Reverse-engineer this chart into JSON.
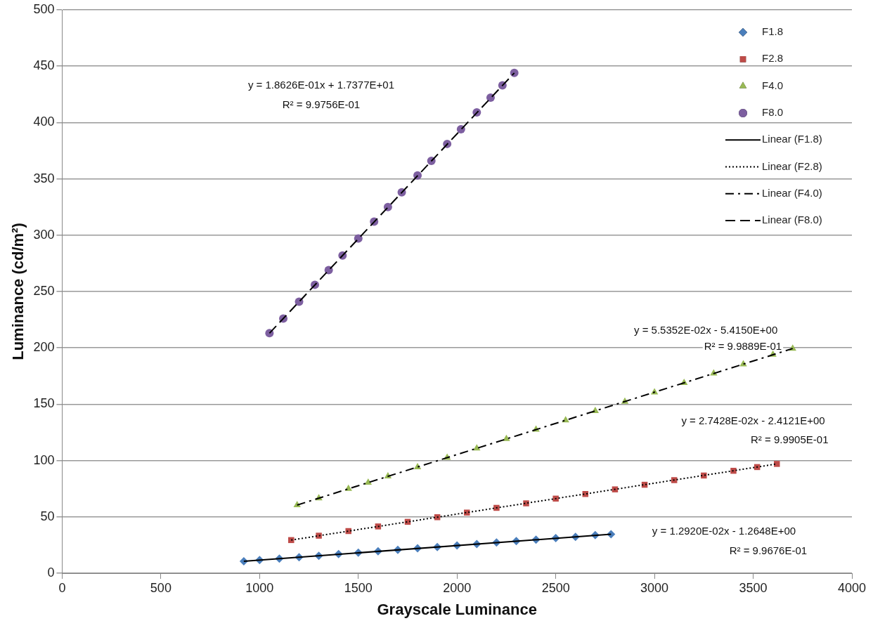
{
  "chart_data": {
    "type": "scatter",
    "xlabel": "Grayscale Luminance",
    "ylabel": "Luminance (cd/m²)",
    "xlim": [
      0,
      4000
    ],
    "xticks": [
      0,
      500,
      1000,
      1500,
      2000,
      2500,
      3000,
      3500,
      4000
    ],
    "ylim": [
      0,
      500
    ],
    "yticks": [
      0,
      50,
      100,
      150,
      200,
      250,
      300,
      350,
      400,
      450,
      500
    ],
    "grid": "y",
    "legend": "top right",
    "series": [
      {
        "name": "F1.8",
        "color": "#4a7ebb",
        "marker": "diamond",
        "x": [
          920,
          1000,
          1100,
          1200,
          1300,
          1400,
          1500,
          1600,
          1700,
          1800,
          1900,
          2000,
          2100,
          2200,
          2300,
          2400,
          2500,
          2600,
          2700,
          2780
        ],
        "values": [
          10.6,
          11.7,
          13.0,
          14.2,
          15.5,
          17.0,
          18.2,
          19.5,
          20.7,
          22.2,
          23.3,
          24.7,
          25.8,
          27.3,
          28.5,
          29.7,
          31.2,
          32.2,
          33.8,
          34.6
        ]
      },
      {
        "name": "F2.8",
        "color": "#be4b48",
        "marker": "square",
        "x": [
          1160,
          1300,
          1450,
          1600,
          1750,
          1900,
          2050,
          2200,
          2350,
          2500,
          2650,
          2800,
          2950,
          3100,
          3250,
          3400,
          3520,
          3620
        ],
        "values": [
          29.4,
          33.3,
          37.4,
          41.5,
          45.6,
          49.7,
          53.8,
          58.0,
          62.0,
          66.2,
          70.3,
          74.4,
          78.5,
          82.6,
          86.7,
          90.9,
          94.2,
          97.0
        ]
      },
      {
        "name": "F4.0",
        "color": "#98b954",
        "marker": "triangle",
        "x": [
          1190,
          1300,
          1450,
          1550,
          1650,
          1800,
          1950,
          2100,
          2250,
          2400,
          2550,
          2700,
          2850,
          3000,
          3150,
          3300,
          3450,
          3600,
          3700
        ],
        "values": [
          60.5,
          66.5,
          75.0,
          80.5,
          86.0,
          94.2,
          102.5,
          110.8,
          119.2,
          127.5,
          135.8,
          144.0,
          152.3,
          160.6,
          168.9,
          177.3,
          185.5,
          194.0,
          199.4
        ]
      },
      {
        "name": "F8.0",
        "color": "#7d5fa0",
        "marker": "circle",
        "x": [
          1050,
          1120,
          1200,
          1280,
          1350,
          1420,
          1500,
          1580,
          1650,
          1720,
          1800,
          1870,
          1950,
          2020,
          2100,
          2170,
          2230,
          2290
        ],
        "values": [
          213,
          226,
          241,
          256,
          269,
          282,
          297,
          312,
          325,
          338,
          353,
          366,
          381,
          394,
          409,
          422,
          433,
          444
        ]
      },
      {
        "name": "Linear (F1.8)",
        "type": "line",
        "color": "#000000",
        "line_style": "solid",
        "marker": "none",
        "x": [
          920,
          2780
        ],
        "values": [
          10.6,
          34.6
        ]
      },
      {
        "name": "Linear (F2.8)",
        "type": "line",
        "color": "#000000",
        "line_style": "dotted",
        "marker": "none",
        "x": [
          1160,
          3620
        ],
        "values": [
          29.4,
          97.0
        ]
      },
      {
        "name": "Linear (F4.0)",
        "type": "line",
        "color": "#000000",
        "line_style": "dashdot",
        "marker": "none",
        "x": [
          1190,
          3700
        ],
        "values": [
          60.5,
          199.4
        ]
      },
      {
        "name": "Linear (F8.0)",
        "type": "line",
        "color": "#000000",
        "line_style": "dashed",
        "marker": "none",
        "x": [
          1050,
          2290
        ],
        "values": [
          213,
          444
        ]
      }
    ],
    "annotations": [
      "y = 1.8626E-01x + 1.7377E+01",
      "R² = 9.9756E-01",
      "y = 5.5352E-02x - 5.4150E+00",
      "R² = 9.9889E-01",
      "y = 2.7428E-02x - 2.4121E+00",
      "R² = 9.9905E-01",
      "y = 1.2920E-02x - 1.2648E+00",
      "R² = 9.9676E-01"
    ]
  }
}
